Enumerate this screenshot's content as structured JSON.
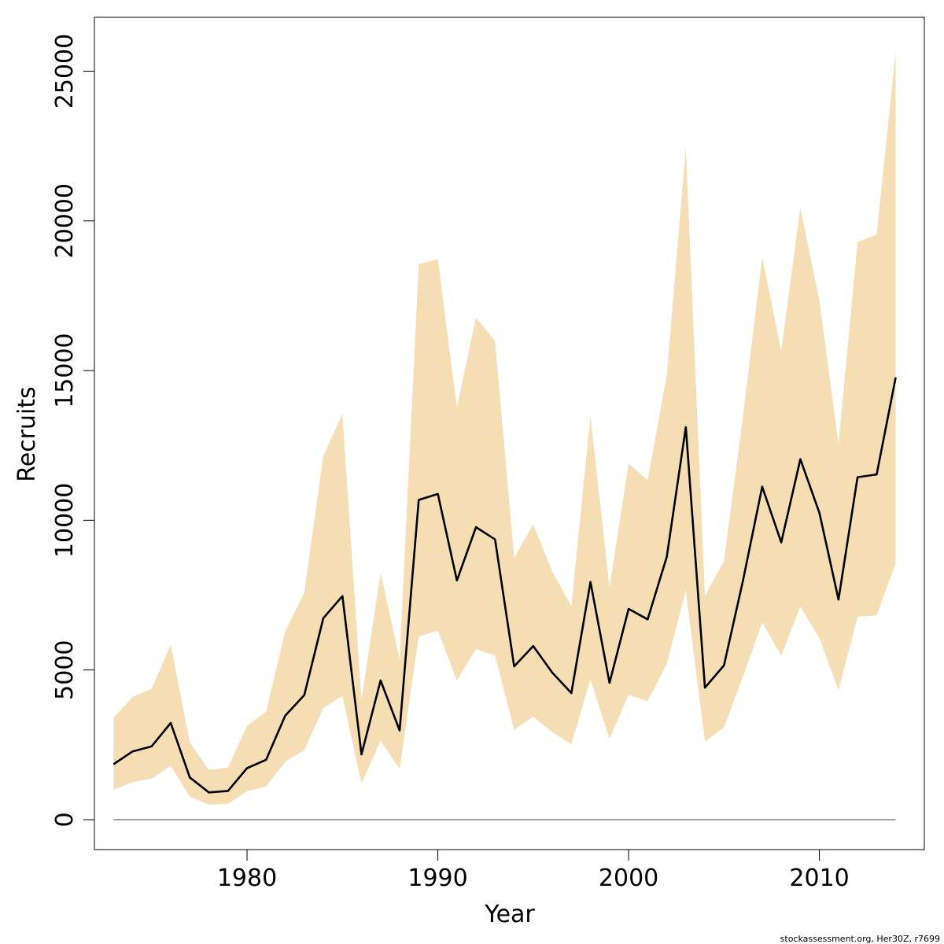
{
  "chart_data": {
    "type": "area",
    "xlabel": "Year",
    "ylabel": "Recruits",
    "xlim": [
      1972,
      2015.5
    ],
    "ylim": [
      -1000,
      26800
    ],
    "x_ticks": [
      1980,
      1990,
      2000,
      2010
    ],
    "y_ticks": [
      0,
      5000,
      10000,
      15000,
      20000,
      25000
    ],
    "band_color": "#F5DEB3",
    "line_color": "#000000",
    "zero_line_color": "#666666",
    "x": [
      1973,
      1974,
      1975,
      1976,
      1977,
      1978,
      1979,
      1980,
      1981,
      1982,
      1983,
      1984,
      1985,
      1986,
      1987,
      1988,
      1989,
      1990,
      1991,
      1992,
      1993,
      1994,
      1995,
      1996,
      1997,
      1998,
      1999,
      2000,
      2001,
      2002,
      2003,
      2004,
      2005,
      2006,
      2007,
      2008,
      2009,
      2010,
      2011,
      2012,
      2013,
      2014
    ],
    "series": [
      {
        "values": [
          1850,
          2280,
          2450,
          3230,
          1410,
          910,
          960,
          1720,
          2000,
          3470,
          4160,
          6730,
          7470,
          2180,
          4650,
          2980,
          10680,
          10880,
          7990,
          9770,
          9360,
          5120,
          5800,
          4910,
          4230,
          7940,
          4570,
          7040,
          6690,
          8780,
          13110,
          4410,
          5150,
          8000,
          11120,
          9260,
          12040,
          10250,
          7350,
          11440,
          11530,
          14770
        ],
        "lower": [
          1000,
          1250,
          1370,
          1790,
          770,
          500,
          530,
          950,
          1110,
          1930,
          2320,
          3730,
          4130,
          1200,
          2640,
          1690,
          6120,
          6310,
          4650,
          5700,
          5480,
          3000,
          3440,
          2920,
          2520,
          4680,
          2700,
          4170,
          3960,
          5200,
          7660,
          2610,
          3080,
          4790,
          6580,
          5480,
          7120,
          6060,
          4320,
          6780,
          6820,
          8560
        ],
        "upper": [
          3400,
          4100,
          4370,
          5840,
          2580,
          1660,
          1740,
          3130,
          3610,
          6290,
          7590,
          12150,
          13550,
          4000,
          8250,
          5350,
          18550,
          18720,
          13760,
          16770,
          15990,
          8740,
          9870,
          8280,
          7130,
          13480,
          7750,
          11900,
          11340,
          14850,
          22460,
          7480,
          8640,
          13480,
          18770,
          15660,
          20440,
          17340,
          12540,
          19290,
          19540,
          25660
        ]
      }
    ],
    "footer_text": "stockassessment.org, Her30Z, r7699"
  }
}
